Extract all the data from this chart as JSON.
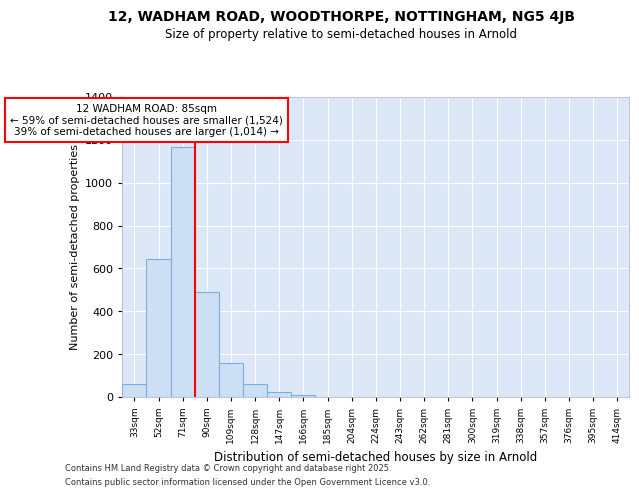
{
  "title1": "12, WADHAM ROAD, WOODTHORPE, NOTTINGHAM, NG5 4JB",
  "title2": "Size of property relative to semi-detached houses in Arnold",
  "xlabel": "Distribution of semi-detached houses by size in Arnold",
  "ylabel": "Number of semi-detached properties",
  "categories": [
    "33sqm",
    "52sqm",
    "71sqm",
    "90sqm",
    "109sqm",
    "128sqm",
    "147sqm",
    "166sqm",
    "185sqm",
    "204sqm",
    "224sqm",
    "243sqm",
    "262sqm",
    "281sqm",
    "300sqm",
    "319sqm",
    "338sqm",
    "357sqm",
    "376sqm",
    "395sqm",
    "414sqm"
  ],
  "values": [
    60,
    645,
    1165,
    490,
    160,
    60,
    25,
    10,
    0,
    0,
    0,
    0,
    0,
    0,
    0,
    0,
    0,
    0,
    0,
    0,
    0
  ],
  "bar_color": "#ccdff5",
  "bar_edge_color": "#7ab0d8",
  "annotation_text_line1": "12 WADHAM ROAD: 85sqm",
  "annotation_text_line2": "← 59% of semi-detached houses are smaller (1,524)",
  "annotation_text_line3": "39% of semi-detached houses are larger (1,014) →",
  "ylim": [
    0,
    1400
  ],
  "yticks": [
    0,
    200,
    400,
    600,
    800,
    1000,
    1200,
    1400
  ],
  "footer1": "Contains HM Land Registry data © Crown copyright and database right 2025.",
  "footer2": "Contains public sector information licensed under the Open Government Licence v3.0.",
  "bg_color": "#ffffff",
  "plot_bg_color": "#dce8f8",
  "grid_color": "#ffffff",
  "red_line_x": 3
}
